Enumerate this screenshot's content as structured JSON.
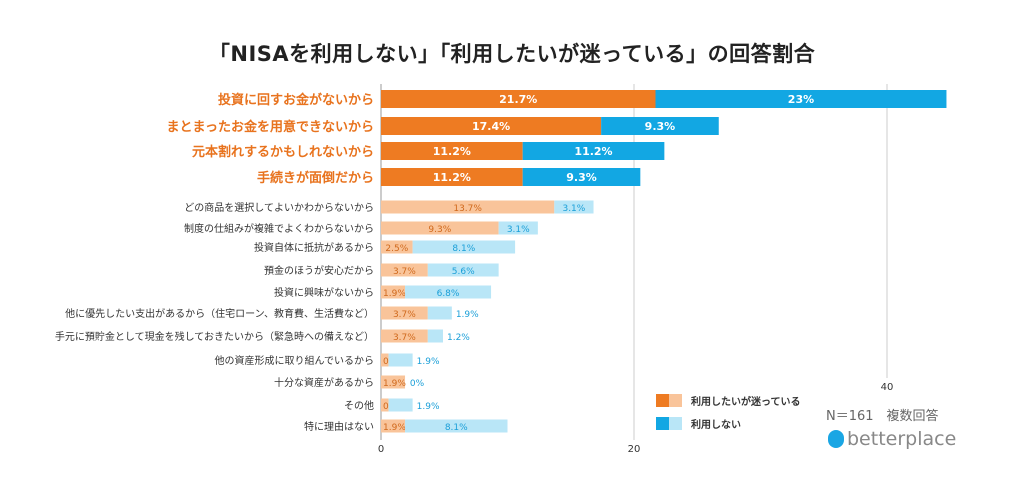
{
  "chart_data": {
    "type": "bar",
    "orientation": "horizontal",
    "stacked": true,
    "title": "「NISAを利用しない」「利用したいが迷っている」の回答割合",
    "categories": [
      "投資に回すお金がないから",
      "まとまったお金を用意できないから",
      "元本割れするかもしれないから",
      "手続きが面倒だから",
      "どの商品を選択してよいかわからないから",
      "制度の仕組みが複雑でよくわからないから",
      "投資自体に抵抗があるから",
      "預金のほうが安心だから",
      "投資に興味がないから",
      "他に優先したい支出があるから（住宅ローン、教育費、生活費など）",
      "手元に預貯金として現金を残しておきたいから（緊急時への備えなど）",
      "他の資産形成に取り組んでいるから",
      "十分な資産があるから",
      "その他",
      "特に理由はない"
    ],
    "highlighted_count": 4,
    "series": [
      {
        "name": "利用したいが迷っている",
        "values": [
          21.7,
          17.4,
          11.2,
          11.2,
          13.7,
          9.3,
          2.5,
          3.7,
          1.9,
          3.7,
          3.7,
          0.6,
          1.9,
          0.6,
          1.9
        ],
        "color": "#ee7b22",
        "light_color": "#f9c49a"
      },
      {
        "name": "利用しない",
        "values": [
          23.0,
          9.3,
          11.2,
          9.3,
          3.1,
          3.1,
          8.1,
          5.6,
          6.8,
          1.9,
          1.2,
          1.9,
          0,
          1.9,
          8.1
        ],
        "color": "#12a7e3",
        "light_color": "#b9e6f7"
      }
    ],
    "xticks": [
      0,
      20,
      40
    ],
    "xlim": [
      0,
      45
    ],
    "grid": true,
    "legend": "bottom-right",
    "unit": "%"
  },
  "note": "N＝161　複数回答",
  "logo": "betterplace"
}
